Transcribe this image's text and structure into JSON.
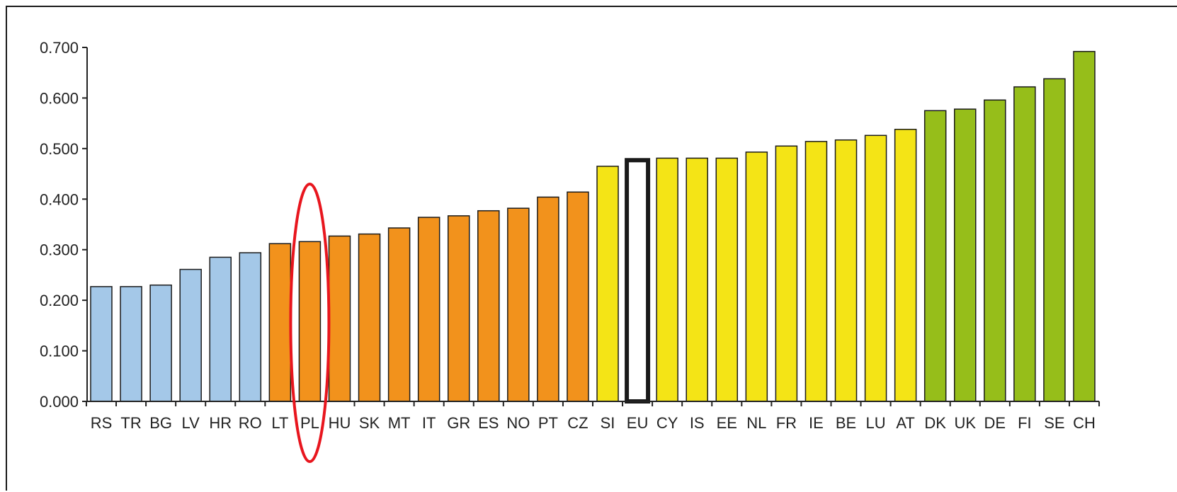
{
  "chart_data": {
    "type": "bar",
    "title": "",
    "xlabel": "",
    "ylabel": "",
    "ylim": [
      0,
      0.7
    ],
    "yticks": [
      "0.000",
      "0.100",
      "0.200",
      "0.300",
      "0.400",
      "0.500",
      "0.600",
      "0.700"
    ],
    "grid": false,
    "legend": "none",
    "categories": [
      "RS",
      "TR",
      "BG",
      "LV",
      "HR",
      "RO",
      "LT",
      "PL",
      "HU",
      "SK",
      "MT",
      "IT",
      "GR",
      "ES",
      "NO",
      "PT",
      "CZ",
      "SI",
      "EU",
      "CY",
      "IS",
      "EE",
      "NL",
      "FR",
      "IE",
      "BE",
      "LU",
      "AT",
      "DK",
      "UK",
      "DE",
      "FI",
      "SE",
      "CH"
    ],
    "values": [
      0.227,
      0.227,
      0.23,
      0.261,
      0.285,
      0.294,
      0.312,
      0.316,
      0.327,
      0.331,
      0.343,
      0.364,
      0.367,
      0.377,
      0.382,
      0.404,
      0.414,
      0.465,
      0.477,
      0.481,
      0.481,
      0.481,
      0.493,
      0.505,
      0.514,
      0.517,
      0.526,
      0.538,
      0.575,
      0.578,
      0.596,
      0.622,
      0.638,
      0.692
    ],
    "bar_colors": [
      "#a4c8e8",
      "#a4c8e8",
      "#a4c8e8",
      "#a4c8e8",
      "#a4c8e8",
      "#a4c8e8",
      "#f2921c",
      "#f2921c",
      "#f2921c",
      "#f2921c",
      "#f2921c",
      "#f2921c",
      "#f2921c",
      "#f2921c",
      "#f2921c",
      "#f2921c",
      "#f2921c",
      "#f4e416",
      "#ffffff",
      "#f4e416",
      "#f4e416",
      "#f4e416",
      "#f4e416",
      "#f4e416",
      "#f4e416",
      "#f4e416",
      "#f4e416",
      "#f4e416",
      "#96be1a",
      "#96be1a",
      "#96be1a",
      "#96be1a",
      "#96be1a",
      "#96be1a"
    ],
    "highlighted_bar": "EU",
    "circled_category": "PL",
    "annotation_color": "#e8161e"
  }
}
